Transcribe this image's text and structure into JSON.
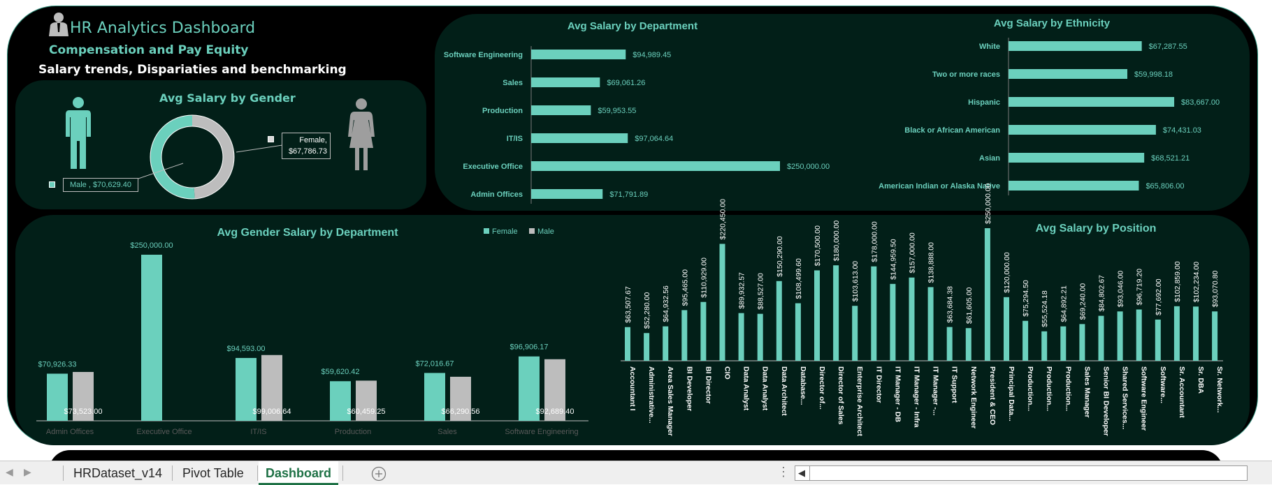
{
  "header": {
    "title": "HR Analytics Dashboard",
    "subtitle": "Compensation and Pay Equity",
    "tagline": "Salary trends, Dispariaties and benchmarking"
  },
  "colors": {
    "female": "#6bd0bd",
    "male": "#bdbdbd",
    "panel": "#021f18",
    "accent": "#6bd0bd"
  },
  "icons": [
    "business-person-icon",
    "male-figure-icon",
    "female-figure-icon",
    "add-sheet-icon",
    "scroll-left-icon"
  ],
  "gender_chart": {
    "title": "Avg Salary by Gender",
    "female_label": "Female,",
    "female_value": "$67,786.73",
    "male_label": "Male ,  $70,629.40"
  },
  "sheet_tabs": [
    "HRDataset_v14",
    "Pivot Table",
    "Dashboard"
  ],
  "chart_data": [
    {
      "type": "pie",
      "title": "Avg Salary by Gender",
      "categories": [
        "Female",
        "Male"
      ],
      "values": [
        67786.73,
        70629.4
      ],
      "labels": [
        "$67,786.73",
        "$70,629.40"
      ]
    },
    {
      "type": "bar",
      "orientation": "horizontal",
      "title": "Avg Salary by Department",
      "categories": [
        "Software Engineering",
        "Sales",
        "Production",
        "IT/IS",
        "Executive Office",
        "Admin Offices"
      ],
      "values": [
        94989.45,
        69061.26,
        59953.55,
        97064.64,
        250000.0,
        71791.89
      ],
      "labels": [
        "$94,989.45",
        "$69,061.26",
        "$59,953.55",
        "$97,064.64",
        "$250,000.00",
        "$71,791.89"
      ]
    },
    {
      "type": "bar",
      "orientation": "horizontal",
      "title": "Avg Salary by Ethnicity",
      "categories": [
        "White",
        "Two or more races",
        "Hispanic",
        "Black or African American",
        "Asian",
        "American Indian or Alaska Native"
      ],
      "values": [
        67287.55,
        59998.18,
        83667.0,
        74431.03,
        68521.21,
        65806.0
      ],
      "labels": [
        "$67,287.55",
        "$59,998.18",
        "$83,667.00",
        "$74,431.03",
        "$68,521.21",
        "$65,806.00"
      ]
    },
    {
      "type": "bar",
      "title": "Avg Gender Salary by Department",
      "legend": "top-right",
      "categories": [
        "Admin Offices",
        "Executive Office",
        "IT/IS",
        "Production",
        "Sales",
        "Software Engineering"
      ],
      "series": [
        {
          "name": "Female",
          "values": [
            70926.33,
            250000.0,
            94593.0,
            59620.42,
            72016.67,
            96906.17
          ],
          "labels": [
            "$70,926.33",
            "$250,000.00",
            "$94,593.00",
            "$59,620.42",
            "$72,016.67",
            "$96,906.17"
          ]
        },
        {
          "name": "Male",
          "values": [
            73523.0,
            null,
            99006.64,
            60459.25,
            66290.56,
            92689.4
          ],
          "labels": [
            "$73,523.00",
            "",
            "$99,006.64",
            "$60,459.25",
            "$66,290.56",
            "$92,689.40"
          ]
        }
      ]
    },
    {
      "type": "bar",
      "title": "Avg Salary by Position",
      "categories": [
        "Accountant I",
        "Administrative...",
        "Area Sales Manager",
        "BI Developer",
        "BI Director",
        "CIO",
        "Data Analyst",
        "Data Analyst",
        "Data Architect",
        "Database...",
        "Director of...",
        "Director of Sales",
        "Enterprise Architect",
        "IT Director",
        "IT Manager - DB",
        "IT Manager - Infra",
        "IT Manager -...",
        "IT Support",
        "Network Engineer",
        "President & CEO",
        "Principal Data...",
        "Production...",
        "Production...",
        "Production...",
        "Sales Manager",
        "Senior BI Developer",
        "Shared Services...",
        "Software Engineer",
        "Software...",
        "Sr. Accountant",
        "Sr. DBA",
        "Sr. Network..."
      ],
      "values": [
        63507.67,
        52280.0,
        64932.56,
        95465.0,
        110929.0,
        220450.0,
        89932.57,
        88527.0,
        150290.0,
        108499.6,
        170500.0,
        180000.0,
        103613.0,
        178000.0,
        144959.5,
        157000.0,
        138888.0,
        63684.38,
        61605.0,
        250000.0,
        120000.0,
        75294.5,
        55524.18,
        64892.21,
        69240.0,
        84802.67,
        93046.0,
        96719.2,
        77692.0,
        102859.0,
        102234.0,
        93070.8
      ],
      "labels": [
        "$63,507.67",
        "$52,280.00",
        "$64,932.56",
        "$95,465.00",
        "$110,929.00",
        "$220,450.00",
        "$89,932.57",
        "$88,527.00",
        "$150,290.00",
        "$108,499.60",
        "$170,500.00",
        "$180,000.00",
        "$103,613.00",
        "$178,000.00",
        "$144,959.50",
        "$157,000.00",
        "$138,888.00",
        "$63,684.38",
        "$61,605.00",
        "$250,000.00",
        "$120,000.00",
        "$75,294.50",
        "$55,524.18",
        "$64,892.21",
        "$69,240.00",
        "$84,802.67",
        "$93,046.00",
        "$96,719.20",
        "$77,692.00",
        "$102,859.00",
        "$102,234.00",
        "$93,070.80"
      ]
    }
  ]
}
